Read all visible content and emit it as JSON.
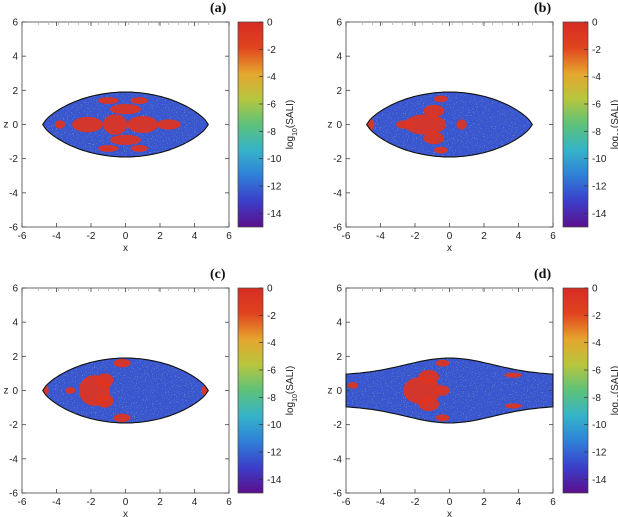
{
  "chart_data": [
    {
      "type": "heatmap",
      "panel_label": "(a)",
      "xlabel": "x",
      "ylabel": "z",
      "xlim": [
        -6,
        6
      ],
      "ylim": [
        -6,
        6
      ],
      "xticks": [
        "-6",
        "-4",
        "-2",
        "0",
        "2",
        "4",
        "6"
      ],
      "yticks": [
        "-6",
        "-4",
        "-2",
        "0",
        "2",
        "4",
        "6"
      ],
      "colorbar": {
        "label": "log10(SALI)",
        "range": [
          -15,
          0
        ],
        "ticks": [
          "0",
          "-2",
          "-4",
          "-6",
          "-8",
          "-10",
          "-12",
          "-14"
        ]
      },
      "region": {
        "shape": "lens",
        "x_extent": [
          -4.8,
          4.8
        ],
        "z_max": 1.9,
        "z_min": -1.9
      }
    },
    {
      "type": "heatmap",
      "panel_label": "(b)",
      "xlabel": "x",
      "ylabel": "z",
      "xlim": [
        -6,
        6
      ],
      "ylim": [
        -6,
        6
      ],
      "xticks": [
        "-6",
        "-4",
        "-2",
        "0",
        "2",
        "4",
        "6"
      ],
      "yticks": [
        "-6",
        "-4",
        "-2",
        "0",
        "2",
        "4",
        "6"
      ],
      "colorbar": {
        "label": "log10(SALI)",
        "range": [
          -15,
          0
        ],
        "ticks": [
          "0",
          "-2",
          "-4",
          "-6",
          "-8",
          "-10",
          "-12",
          "-14"
        ]
      },
      "region": {
        "shape": "lens",
        "x_extent": [
          -4.8,
          4.8
        ],
        "z_max": 1.9,
        "z_min": -1.9
      }
    },
    {
      "type": "heatmap",
      "panel_label": "(c)",
      "xlabel": "x",
      "ylabel": "z",
      "xlim": [
        -6,
        6
      ],
      "ylim": [
        -6,
        6
      ],
      "xticks": [
        "-6",
        "-4",
        "-2",
        "0",
        "2",
        "4",
        "6"
      ],
      "yticks": [
        "-6",
        "-4",
        "-2",
        "0",
        "2",
        "4",
        "6"
      ],
      "colorbar": {
        "label": "log10(SALI)",
        "range": [
          -15,
          0
        ],
        "ticks": [
          "0",
          "-2",
          "-4",
          "-6",
          "-8",
          "-10",
          "-12",
          "-14"
        ]
      },
      "region": {
        "shape": "lens",
        "x_extent": [
          -4.8,
          4.8
        ],
        "z_max": 1.9,
        "z_min": -1.9
      }
    },
    {
      "type": "heatmap",
      "panel_label": "(d)",
      "xlabel": "x",
      "ylabel": "z",
      "xlim": [
        -6,
        6
      ],
      "ylim": [
        -6,
        6
      ],
      "xticks": [
        "-6",
        "-4",
        "-2",
        "0",
        "2",
        "4",
        "6"
      ],
      "yticks": [
        "-6",
        "-4",
        "-2",
        "0",
        "2",
        "4",
        "6"
      ],
      "colorbar": {
        "label": "log10(SALI)",
        "range": [
          -15,
          0
        ],
        "ticks": [
          "0",
          "-2",
          "-4",
          "-6",
          "-8",
          "-10",
          "-12",
          "-14"
        ]
      },
      "region": {
        "shape": "open-lobe",
        "x_extent": [
          -6,
          6
        ],
        "z_max": 1.9,
        "z_min": -1.9,
        "z_edge": 0.9
      }
    }
  ],
  "colormap": [
    "#5b0f8c",
    "#3b3ec9",
    "#2f7fd8",
    "#35b3c9",
    "#5cc27a",
    "#b7c63e",
    "#e6a52e",
    "#e0441e",
    "#d62c24"
  ],
  "colors": {
    "chaotic": "#e0341f",
    "regular": "#3a55cf"
  }
}
